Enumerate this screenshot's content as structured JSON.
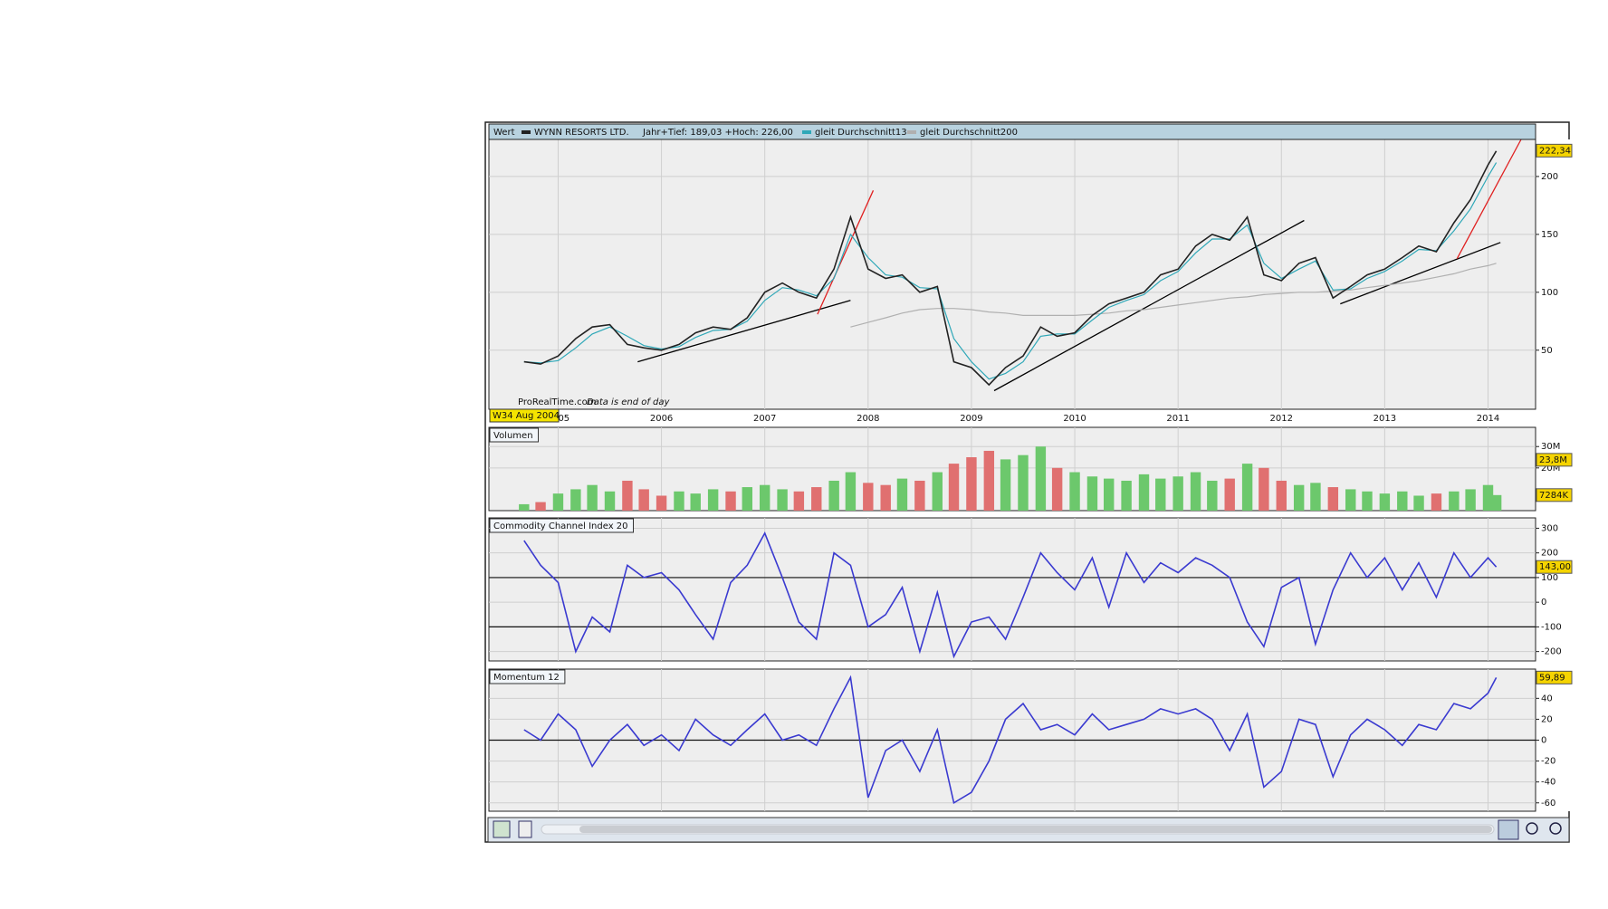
{
  "chart_data": [
    {
      "type": "line",
      "title": "Wert",
      "header_note": "Jahr+Tief: 189,03 +Hoch: 226,00",
      "cursor_label": "W34 Aug 2004",
      "source": "ProRealTime.com",
      "source_note": "Data is end of day",
      "x": [
        2004.67,
        2004.83,
        2005,
        2005.17,
        2005.33,
        2005.5,
        2005.67,
        2005.83,
        2006,
        2006.17,
        2006.33,
        2006.5,
        2006.67,
        2006.83,
        2007,
        2007.17,
        2007.33,
        2007.5,
        2007.67,
        2007.83,
        2008,
        2008.17,
        2008.33,
        2008.5,
        2008.67,
        2008.83,
        2009,
        2009.17,
        2009.33,
        2009.5,
        2009.67,
        2009.83,
        2010,
        2010.17,
        2010.33,
        2010.5,
        2010.67,
        2010.83,
        2011,
        2011.17,
        2011.33,
        2011.5,
        2011.67,
        2011.83,
        2012,
        2012.17,
        2012.33,
        2012.5,
        2012.67,
        2012.83,
        2013,
        2013.17,
        2013.33,
        2013.5,
        2013.67,
        2013.83,
        2014,
        2014.08
      ],
      "xlim": [
        2004.33,
        2014.46
      ],
      "xticks": [
        2005,
        2006,
        2007,
        2008,
        2009,
        2010,
        2011,
        2012,
        2013,
        2014
      ],
      "ylim": [
        -1,
        232
      ],
      "yticks": [
        50,
        100,
        150,
        200
      ],
      "grid": true,
      "series": [
        {
          "name": "WYNN RESORTS LTD.",
          "color": "#222222",
          "values": [
            40,
            38,
            45,
            60,
            70,
            72,
            55,
            52,
            50,
            55,
            65,
            70,
            68,
            78,
            100,
            108,
            100,
            95,
            120,
            165,
            120,
            112,
            115,
            100,
            105,
            40,
            35,
            20,
            35,
            45,
            70,
            62,
            65,
            80,
            90,
            95,
            100,
            115,
            120,
            140,
            150,
            145,
            165,
            115,
            110,
            125,
            130,
            95,
            105,
            115,
            120,
            130,
            140,
            135,
            160,
            180,
            210,
            222
          ]
        },
        {
          "name": "gleit Durchschnitt13",
          "color": "#2fa8b8",
          "values": [
            40,
            39,
            41,
            52,
            64,
            70,
            62,
            54,
            51,
            53,
            61,
            67,
            68,
            75,
            93,
            104,
            102,
            97,
            112,
            150,
            130,
            115,
            113,
            104,
            103,
            60,
            40,
            25,
            30,
            40,
            62,
            64,
            64,
            76,
            87,
            93,
            98,
            110,
            118,
            134,
            146,
            146,
            158,
            125,
            112,
            120,
            127,
            102,
            103,
            112,
            118,
            127,
            137,
            136,
            153,
            172,
            200,
            212
          ]
        },
        {
          "name": "gleit Durchschnitt200",
          "color": "#b0b0b0",
          "values": [
            null,
            null,
            null,
            null,
            null,
            null,
            null,
            null,
            null,
            null,
            null,
            null,
            null,
            null,
            null,
            null,
            null,
            null,
            null,
            70,
            74,
            78,
            82,
            85,
            86,
            86,
            85,
            83,
            82,
            80,
            80,
            80,
            80,
            81,
            82,
            84,
            85,
            87,
            89,
            91,
            93,
            95,
            96,
            98,
            99,
            100,
            100,
            101,
            102,
            104,
            106,
            108,
            110,
            113,
            116,
            120,
            123,
            125
          ]
        }
      ],
      "trendlines": [
        {
          "color": "#000000",
          "x": [
            2005.77,
            2007.83
          ],
          "y": [
            40,
            93
          ]
        },
        {
          "color": "#e02020",
          "x": [
            2007.51,
            2008.05
          ],
          "y": [
            81,
            188
          ]
        },
        {
          "color": "#000000",
          "x": [
            2009.22,
            2012.22
          ],
          "y": [
            15,
            162
          ]
        },
        {
          "color": "#000000",
          "x": [
            2012.57,
            2014.12
          ],
          "y": [
            90,
            143
          ]
        },
        {
          "color": "#e02020",
          "x": [
            2013.7,
            2014.32
          ],
          "y": [
            129,
            232
          ]
        }
      ],
      "last_value": {
        "value": 222.34,
        "label": "222,34"
      }
    },
    {
      "type": "bar",
      "title": "Volumen",
      "values": [
        3000000,
        4000000,
        8000000,
        10000000,
        12000000,
        9000000,
        14000000,
        10000000,
        7000000,
        9000000,
        8000000,
        10000000,
        9000000,
        11000000,
        12000000,
        10000000,
        9000000,
        11000000,
        14000000,
        18000000,
        13000000,
        12000000,
        15000000,
        14000000,
        18000000,
        22000000,
        25000000,
        28000000,
        24000000,
        26000000,
        30000000,
        20000000,
        18000000,
        16000000,
        15000000,
        14000000,
        17000000,
        15000000,
        16000000,
        18000000,
        14000000,
        15000000,
        22000000,
        20000000,
        14000000,
        12000000,
        13000000,
        11000000,
        10000000,
        9000000,
        8000000,
        9000000,
        7000000,
        8000000,
        9000000,
        10000000,
        12000000,
        7284000
      ],
      "colors": [
        "#6cc86c",
        "#e07070",
        "#6cc86c",
        "#6cc86c",
        "#6cc86c",
        "#6cc86c",
        "#e07070",
        "#e07070",
        "#e07070",
        "#6cc86c",
        "#6cc86c",
        "#6cc86c",
        "#e07070",
        "#6cc86c",
        "#6cc86c",
        "#6cc86c",
        "#e07070",
        "#e07070",
        "#6cc86c",
        "#6cc86c",
        "#e07070",
        "#e07070",
        "#6cc86c",
        "#e07070",
        "#6cc86c",
        "#e07070",
        "#e07070",
        "#e07070",
        "#6cc86c",
        "#6cc86c",
        "#6cc86c",
        "#e07070",
        "#6cc86c",
        "#6cc86c",
        "#6cc86c",
        "#6cc86c",
        "#6cc86c",
        "#6cc86c",
        "#6cc86c",
        "#6cc86c",
        "#6cc86c",
        "#e07070",
        "#6cc86c",
        "#e07070",
        "#e07070",
        "#6cc86c",
        "#6cc86c",
        "#e07070",
        "#6cc86c",
        "#6cc86c",
        "#6cc86c",
        "#6cc86c",
        "#6cc86c",
        "#e07070",
        "#6cc86c",
        "#6cc86c",
        "#6cc86c",
        "#6cc86c"
      ],
      "ylim": [
        0,
        39000000
      ],
      "yticks": [
        {
          "value": 30000000,
          "label": "30M"
        },
        {
          "value": 20000000,
          "label": "20M"
        }
      ],
      "markers": [
        {
          "value": 23800000,
          "label": "23,8M"
        },
        {
          "value": 7284000,
          "label": "7284K"
        }
      ]
    },
    {
      "type": "line",
      "title": "Commodity Channel Index 20",
      "series": [
        {
          "color": "#3a3ad0",
          "values": [
            250,
            150,
            80,
            -200,
            -60,
            -120,
            150,
            100,
            120,
            50,
            -50,
            -150,
            80,
            150,
            280,
            100,
            -80,
            -150,
            200,
            150,
            -100,
            -50,
            60,
            -200,
            40,
            -220,
            -80,
            -60,
            -150,
            20,
            200,
            120,
            50,
            180,
            -20,
            200,
            80,
            160,
            120,
            180,
            150,
            100,
            -80,
            -180,
            60,
            100,
            -170,
            50,
            200,
            100,
            180,
            50,
            160,
            20,
            200,
            100,
            180,
            143
          ]
        }
      ],
      "levels": [
        100,
        -100
      ],
      "ylim": [
        -238,
        342
      ],
      "yticks": [
        -200,
        -100,
        0,
        100,
        200,
        300
      ],
      "last_value": {
        "value": 143,
        "label": "143,00"
      }
    },
    {
      "type": "line",
      "title": "Momentum 12",
      "series": [
        {
          "color": "#3a3ad0",
          "values": [
            10,
            0,
            25,
            10,
            -25,
            0,
            15,
            -5,
            5,
            -10,
            20,
            5,
            -5,
            10,
            25,
            0,
            5,
            -5,
            30,
            60,
            -55,
            -10,
            0,
            -30,
            10,
            -60,
            -50,
            -20,
            20,
            35,
            10,
            15,
            5,
            25,
            10,
            15,
            20,
            30,
            25,
            30,
            20,
            -10,
            25,
            -45,
            -30,
            20,
            15,
            -35,
            5,
            20,
            10,
            -5,
            15,
            10,
            35,
            30,
            45,
            59.89
          ]
        }
      ],
      "levels": [
        0
      ],
      "ylim": [
        -68,
        68
      ],
      "yticks": [
        -60,
        -40,
        -20,
        0,
        20,
        40
      ],
      "last_value": {
        "value": 59.89,
        "label": "59,89"
      }
    }
  ]
}
